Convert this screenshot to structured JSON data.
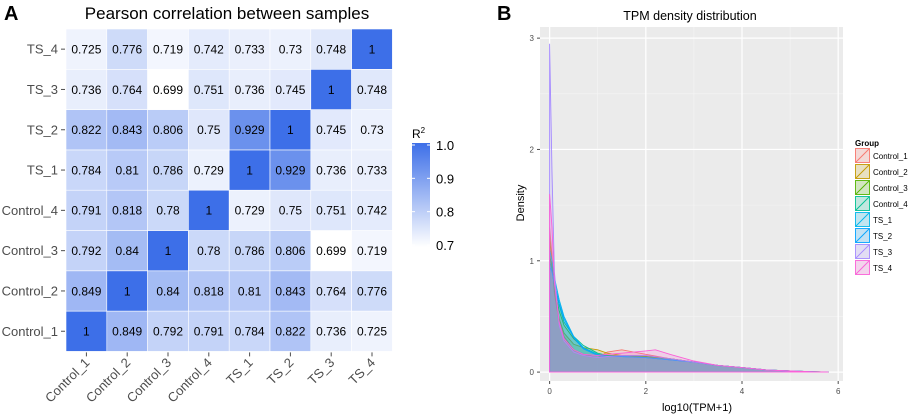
{
  "chart_data": [
    {
      "type": "heatmap",
      "panel_label": "A",
      "title": "Pearson correlation between samples",
      "x_categories": [
        "Control_1",
        "Control_2",
        "Control_3",
        "Control_4",
        "TS_1",
        "TS_2",
        "TS_3",
        "TS_4"
      ],
      "y_categories": [
        "Control_1",
        "Control_2",
        "Control_3",
        "Control_4",
        "TS_1",
        "TS_2",
        "TS_3",
        "TS_4"
      ],
      "matrix": [
        [
          1,
          0.849,
          0.792,
          0.791,
          0.784,
          0.822,
          0.736,
          0.725
        ],
        [
          0.849,
          1,
          0.84,
          0.818,
          0.81,
          0.843,
          0.764,
          0.776
        ],
        [
          0.792,
          0.84,
          1,
          0.78,
          0.786,
          0.806,
          0.699,
          0.719
        ],
        [
          0.791,
          0.818,
          0.78,
          1,
          0.729,
          0.75,
          0.751,
          0.742
        ],
        [
          0.784,
          0.81,
          0.786,
          0.729,
          1,
          0.929,
          0.736,
          0.733
        ],
        [
          0.822,
          0.843,
          0.806,
          0.75,
          0.929,
          1,
          0.745,
          0.73
        ],
        [
          0.736,
          0.764,
          0.699,
          0.751,
          0.736,
          0.745,
          1,
          0.748
        ],
        [
          0.725,
          0.776,
          0.719,
          0.742,
          0.733,
          0.73,
          0.748,
          1
        ]
      ],
      "legend": {
        "title": "R",
        "title_superscript": "2",
        "ticks": [
          "1.0",
          "0.9",
          "0.8",
          "0.7"
        ],
        "range": [
          0.7,
          1.0
        ]
      },
      "colors": {
        "low": "#ffffff",
        "high": "#3d6fe8"
      }
    },
    {
      "type": "area",
      "panel_label": "B",
      "title": "TPM density distribution",
      "xlabel": "log10(TPM+1)",
      "ylabel": "Density",
      "xlim": [
        -0.2,
        6.1
      ],
      "ylim": [
        -0.08,
        3.1
      ],
      "x_ticks": [
        "0",
        "2",
        "4",
        "6"
      ],
      "y_ticks": [
        "0",
        "1",
        "2",
        "3"
      ],
      "legend_title": "Group",
      "series": [
        {
          "name": "Control_1",
          "color": "#f8766d",
          "x": [
            0,
            0.05,
            0.1,
            0.2,
            0.3,
            0.5,
            0.7,
            1,
            1.2,
            1.5,
            2,
            2.5,
            3,
            3.5,
            4,
            4.5,
            5,
            5.5,
            5.8
          ],
          "y": [
            1.3,
            1.05,
            0.7,
            0.45,
            0.32,
            0.2,
            0.16,
            0.13,
            0.18,
            0.2,
            0.16,
            0.12,
            0.09,
            0.06,
            0.04,
            0.02,
            0.01,
            0.003,
            0
          ]
        },
        {
          "name": "Control_2",
          "color": "#c49a00",
          "x": [
            0,
            0.05,
            0.1,
            0.2,
            0.3,
            0.5,
            0.7,
            1,
            1.2,
            1.5,
            2,
            2.5,
            3,
            3.5,
            4,
            4.5,
            5,
            5.5,
            5.8
          ],
          "y": [
            1.2,
            1.0,
            0.72,
            0.48,
            0.35,
            0.25,
            0.22,
            0.2,
            0.17,
            0.15,
            0.14,
            0.12,
            0.09,
            0.06,
            0.04,
            0.02,
            0.01,
            0.003,
            0
          ]
        },
        {
          "name": "Control_3",
          "color": "#53b400",
          "x": [
            0,
            0.05,
            0.1,
            0.2,
            0.3,
            0.5,
            0.7,
            1,
            1.2,
            1.5,
            2,
            2.5,
            3,
            3.5,
            4,
            4.5,
            5,
            5.5,
            5.8
          ],
          "y": [
            1.05,
            0.95,
            0.75,
            0.55,
            0.42,
            0.3,
            0.22,
            0.16,
            0.15,
            0.15,
            0.14,
            0.12,
            0.09,
            0.06,
            0.04,
            0.02,
            0.01,
            0.003,
            0
          ]
        },
        {
          "name": "Control_4",
          "color": "#00c094",
          "x": [
            0,
            0.05,
            0.1,
            0.2,
            0.3,
            0.5,
            0.7,
            1,
            1.2,
            1.5,
            2,
            2.5,
            3,
            3.5,
            4,
            4.5,
            5,
            5.5,
            5.8
          ],
          "y": [
            1.0,
            0.92,
            0.78,
            0.6,
            0.45,
            0.32,
            0.24,
            0.17,
            0.15,
            0.14,
            0.13,
            0.11,
            0.09,
            0.06,
            0.04,
            0.02,
            0.01,
            0.003,
            0
          ]
        },
        {
          "name": "TS_1",
          "color": "#00b6eb",
          "x": [
            0,
            0.05,
            0.1,
            0.2,
            0.3,
            0.5,
            0.7,
            1,
            1.2,
            1.5,
            2,
            2.5,
            3,
            3.5,
            4,
            4.5,
            5,
            5.5,
            5.8
          ],
          "y": [
            1.1,
            1.0,
            0.85,
            0.65,
            0.5,
            0.32,
            0.22,
            0.16,
            0.14,
            0.14,
            0.13,
            0.11,
            0.09,
            0.06,
            0.04,
            0.02,
            0.01,
            0.003,
            0
          ]
        },
        {
          "name": "TS_2",
          "color": "#06a4ff",
          "x": [
            0,
            0.05,
            0.1,
            0.2,
            0.3,
            0.5,
            0.7,
            1,
            1.2,
            1.5,
            2,
            2.5,
            3,
            3.5,
            4,
            4.5,
            5,
            5.5,
            5.8
          ],
          "y": [
            0.95,
            0.9,
            0.8,
            0.62,
            0.48,
            0.31,
            0.21,
            0.15,
            0.14,
            0.14,
            0.13,
            0.11,
            0.09,
            0.06,
            0.04,
            0.02,
            0.01,
            0.003,
            0
          ]
        },
        {
          "name": "TS_3",
          "color": "#a58aff",
          "x": [
            0,
            0.05,
            0.1,
            0.2,
            0.3,
            0.5,
            0.7,
            1,
            1.2,
            1.5,
            2,
            2.5,
            3,
            3.5,
            4,
            4.5,
            5,
            5.5,
            5.8
          ],
          "y": [
            2.95,
            1.8,
            0.9,
            0.42,
            0.28,
            0.18,
            0.15,
            0.13,
            0.14,
            0.15,
            0.15,
            0.12,
            0.09,
            0.06,
            0.04,
            0.02,
            0.01,
            0.003,
            0
          ]
        },
        {
          "name": "TS_4",
          "color": "#fb61d7",
          "x": [
            0,
            0.05,
            0.1,
            0.2,
            0.3,
            0.5,
            0.7,
            1,
            1.2,
            1.5,
            2,
            2.2,
            2.5,
            3,
            3.5,
            4,
            4.5,
            5,
            5.5,
            5.8
          ],
          "y": [
            1.6,
            1.3,
            0.8,
            0.45,
            0.3,
            0.2,
            0.16,
            0.15,
            0.16,
            0.17,
            0.19,
            0.2,
            0.16,
            0.1,
            0.06,
            0.04,
            0.02,
            0.01,
            0.003,
            0
          ]
        }
      ]
    }
  ]
}
